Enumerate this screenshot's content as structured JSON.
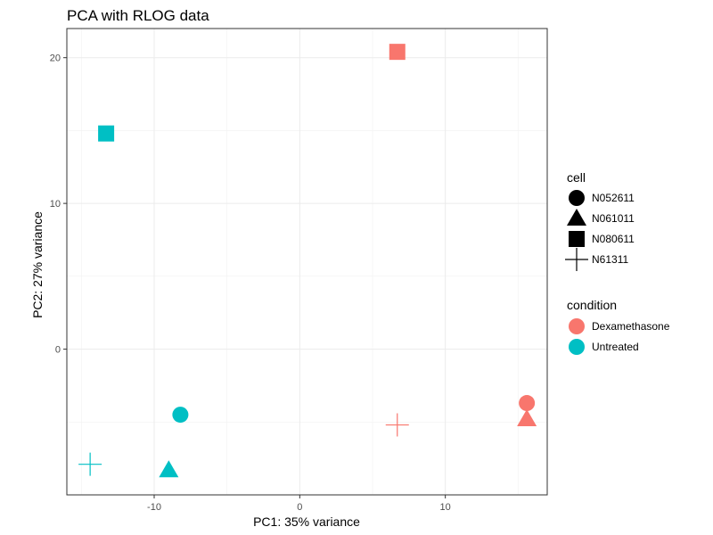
{
  "chart_data": {
    "type": "scatter",
    "title": "PCA with RLOG data",
    "xlabel": "PC1: 35% variance",
    "ylabel": "PC2: 27% variance",
    "xlim": [
      -16,
      17
    ],
    "ylim": [
      -10,
      22
    ],
    "x_ticks": [
      -10,
      0,
      10
    ],
    "y_ticks": [
      0,
      10,
      20
    ],
    "x_tick_labels": [
      "-10",
      "0",
      "10"
    ],
    "y_tick_labels": [
      "0",
      "10",
      "20"
    ],
    "grid": true,
    "legend_position": "right",
    "legends": {
      "shape": {
        "title": "cell",
        "entries": [
          {
            "label": "N052611",
            "shape": "circle"
          },
          {
            "label": "N061011",
            "shape": "triangle"
          },
          {
            "label": "N080611",
            "shape": "square"
          },
          {
            "label": "N61311",
            "shape": "cross"
          }
        ]
      },
      "color": {
        "title": "condition",
        "entries": [
          {
            "label": "Dexamethasone",
            "color": "#F8766D"
          },
          {
            "label": "Untreated",
            "color": "#00BFC4"
          }
        ]
      }
    },
    "points": [
      {
        "x": 15.6,
        "y": -3.7,
        "cell": "N052611",
        "condition": "Dexamethasone"
      },
      {
        "x": 15.6,
        "y": -4.8,
        "cell": "N061011",
        "condition": "Dexamethasone"
      },
      {
        "x": 6.7,
        "y": 20.4,
        "cell": "N080611",
        "condition": "Dexamethasone"
      },
      {
        "x": 6.7,
        "y": -5.2,
        "cell": "N61311",
        "condition": "Dexamethasone"
      },
      {
        "x": -8.2,
        "y": -4.5,
        "cell": "N052611",
        "condition": "Untreated"
      },
      {
        "x": -9.0,
        "y": -8.3,
        "cell": "N061011",
        "condition": "Untreated"
      },
      {
        "x": -13.3,
        "y": 14.8,
        "cell": "N080611",
        "condition": "Untreated"
      },
      {
        "x": -14.4,
        "y": -7.9,
        "cell": "N61311",
        "condition": "Untreated"
      }
    ]
  }
}
